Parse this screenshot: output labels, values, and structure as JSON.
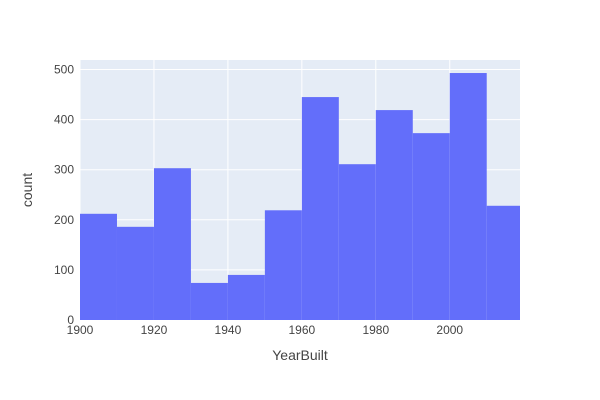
{
  "chart_data": {
    "type": "bar",
    "subtype": "histogram",
    "bin_edges": [
      1900,
      1910,
      1920,
      1930,
      1940,
      1950,
      1960,
      1970,
      1980,
      1990,
      2000,
      2010,
      2020
    ],
    "values": [
      212,
      186,
      303,
      74,
      90,
      219,
      445,
      311,
      419,
      373,
      493,
      228
    ],
    "xlabel": "YearBuilt",
    "ylabel": "count",
    "x_ticks": [
      1900,
      1920,
      1940,
      1960,
      1980,
      2000
    ],
    "y_ticks": [
      0,
      100,
      200,
      300,
      400,
      500
    ],
    "xlim": [
      1900,
      2019
    ],
    "ylim": [
      0,
      519
    ],
    "grid": true,
    "colors": {
      "bar": "#636efa",
      "plot_background": "#e5ecf6",
      "grid": "#ffffff"
    }
  }
}
